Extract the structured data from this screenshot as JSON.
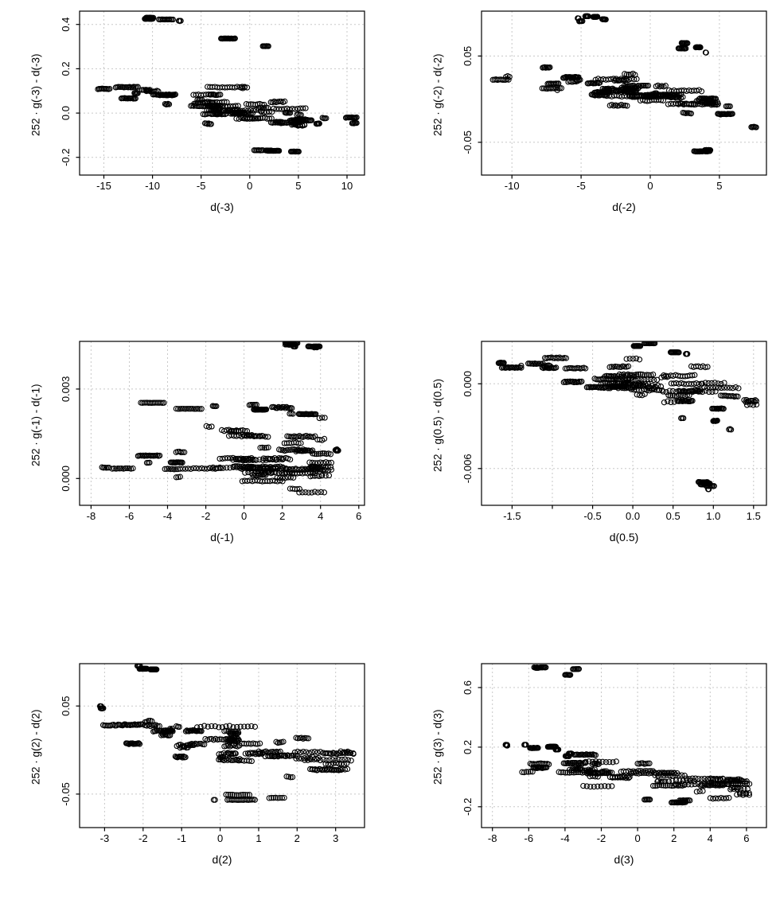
{
  "style": {
    "background": "#ffffff",
    "point_color": "#000000",
    "grid_color": "#c8c8c8",
    "axis_color": "#000000",
    "grid_dash": "2,3",
    "marker": "open-circle"
  },
  "chart_data": [
    {
      "type": "scatter",
      "xlabel": "d(-3)",
      "ylabel": "252 · g(-3) - d(-3)",
      "xlim": [
        -17.5,
        11.8
      ],
      "ylim": [
        -0.28,
        0.46
      ],
      "xticks": [
        -15,
        -10,
        -5,
        0,
        5,
        10
      ],
      "xtick_labels": [
        "-15",
        "-10",
        "-5",
        "0",
        "5",
        "10"
      ],
      "yticks": [
        -0.2,
        0.0,
        0.2,
        0.4
      ],
      "ytick_labels": [
        "-0.2",
        "0.0",
        "0.2",
        "0.4"
      ],
      "grid": "dashed",
      "marker": "open-circle",
      "clusters": [
        {
          "n": 35,
          "x0": -12.5,
          "x1": -6.0,
          "y0": 0.435,
          "y1": 0.42,
          "sy": 0.006
        },
        {
          "n": 25,
          "x0": -3.2,
          "x1": 2.4,
          "y0": 0.345,
          "y1": 0.3,
          "sy": 0.008
        },
        {
          "n": 60,
          "x0": -16.5,
          "x1": -9.0,
          "y0": 0.115,
          "y1": 0.075,
          "sy": 0.022
        },
        {
          "n": 90,
          "x0": -11.0,
          "x1": -3.0,
          "y0": 0.085,
          "y1": 0.03,
          "sy": 0.028
        },
        {
          "n": 270,
          "x0": -6.5,
          "x1": 6.0,
          "y0": 0.05,
          "y1": -0.03,
          "sy": 0.032
        },
        {
          "n": 70,
          "x0": 3.0,
          "x1": 11.0,
          "y0": -0.01,
          "y1": -0.055,
          "sy": 0.018
        },
        {
          "n": 40,
          "x0": -0.5,
          "x1": 5.3,
          "y0": -0.165,
          "y1": -0.175,
          "sy": 0.007
        }
      ]
    },
    {
      "type": "scatter",
      "xlabel": "d(-2)",
      "ylabel": "252 · g(-2) - d(-2)",
      "xlim": [
        -12.2,
        8.4
      ],
      "ylim": [
        -0.088,
        0.102
      ],
      "xticks": [
        -10,
        -5,
        0,
        5
      ],
      "xtick_labels": [
        "-10",
        "-5",
        "0",
        "5"
      ],
      "yticks": [
        -0.05,
        0.05
      ],
      "ytick_labels": [
        "-0.05",
        "0.05"
      ],
      "grid": "dashed",
      "marker": "open-circle",
      "clusters": [
        {
          "n": 30,
          "x0": -5.6,
          "x1": -2.0,
          "y0": 0.097,
          "y1": 0.088,
          "sy": 0.003
        },
        {
          "n": 28,
          "x0": 0.6,
          "x1": 4.2,
          "y0": 0.062,
          "y1": 0.056,
          "sy": 0.003
        },
        {
          "n": 55,
          "x0": -11.5,
          "x1": -5.0,
          "y0": 0.031,
          "y1": 0.019,
          "sy": 0.007
        },
        {
          "n": 95,
          "x0": -7.0,
          "x1": -1.0,
          "y0": 0.024,
          "y1": 0.008,
          "sy": 0.009
        },
        {
          "n": 270,
          "x0": -4.0,
          "x1": 5.0,
          "y0": 0.012,
          "y1": -0.012,
          "sy": 0.011
        },
        {
          "n": 55,
          "x0": 3.0,
          "x1": 7.8,
          "y0": -0.004,
          "y1": -0.021,
          "sy": 0.007
        },
        {
          "n": 35,
          "x0": 1.2,
          "x1": 4.6,
          "y0": -0.058,
          "y1": -0.063,
          "sy": 0.004
        }
      ]
    },
    {
      "type": "scatter",
      "xlabel": "d(-1)",
      "ylabel": "252 · g(-1) - d(-1)",
      "xlim": [
        -8.6,
        6.3
      ],
      "ylim": [
        -0.0009,
        0.0046
      ],
      "xticks": [
        -8,
        -6,
        -4,
        -2,
        0,
        2,
        4,
        6
      ],
      "xtick_labels": [
        "-8",
        "-6",
        "-4",
        "-2",
        "0",
        "2",
        "4",
        "6"
      ],
      "yticks": [
        0.0,
        0.003
      ],
      "ytick_labels": [
        "0.000",
        "0.003"
      ],
      "grid": "dashed",
      "marker": "open-circle",
      "clusters": [
        {
          "n": 45,
          "x0": 0.8,
          "x1": 4.2,
          "y0": 0.00455,
          "y1": 0.0044,
          "sy": 8e-05
        },
        {
          "n": 35,
          "x0": -5.6,
          "x1": -1.2,
          "y0": 0.0025,
          "y1": 0.00242,
          "sy": 6e-05
        },
        {
          "n": 45,
          "x0": 0.2,
          "x1": 4.0,
          "y0": 0.0023,
          "y1": 0.00215,
          "sy": 0.0001
        },
        {
          "n": 140,
          "x0": -2.2,
          "x1": 4.3,
          "y0": 0.00115,
          "y1": 0.00165,
          "sy": 0.0004
        },
        {
          "n": 60,
          "x0": -8.1,
          "x1": -3.2,
          "y0": 0.0005,
          "y1": 0.0004,
          "sy": 0.00014
        },
        {
          "n": 290,
          "x0": -3.6,
          "x1": 4.6,
          "y0": 0.0004,
          "y1": 0.00018,
          "sy": 0.00024
        },
        {
          "n": 10,
          "x0": 4.6,
          "x1": 5.9,
          "y0": 0.001,
          "y1": 0.0008,
          "sy": 0.0003
        }
      ]
    },
    {
      "type": "scatter",
      "xlabel": "d(0.5)",
      "ylabel": "252 · g(0.5) - d(0.5)",
      "xlim": [
        -1.88,
        1.66
      ],
      "ylim": [
        -0.0086,
        0.003
      ],
      "xticks": [
        -1.5,
        -1.0,
        -0.5,
        0.0,
        0.5,
        1.0,
        1.5
      ],
      "xtick_labels": [
        "-1.5",
        "",
        "-0.5",
        "0.0",
        "0.5",
        "1.0",
        "1.5"
      ],
      "yticks": [
        -0.006,
        0.0
      ],
      "ytick_labels": [
        "-0.006",
        "0.000"
      ],
      "grid": "dashed",
      "marker": "open-circle",
      "clusters": [
        {
          "n": 22,
          "x0": -0.38,
          "x1": 0.28,
          "y0": 0.00285,
          "y1": 0.0027,
          "sy": 8e-05
        },
        {
          "n": 14,
          "x0": 0.45,
          "x1": 0.95,
          "y0": 0.00225,
          "y1": 0.0021,
          "sy": 8e-05
        },
        {
          "n": 55,
          "x0": -1.78,
          "x1": -0.95,
          "y0": 0.00155,
          "y1": 0.001,
          "sy": 0.00035
        },
        {
          "n": 115,
          "x0": -1.1,
          "x1": -0.05,
          "y0": 0.001,
          "y1": 0.0002,
          "sy": 0.0005
        },
        {
          "n": 270,
          "x0": -0.4,
          "x1": 1.55,
          "y0": 0.0004,
          "y1": -0.0012,
          "sy": 0.00065
        },
        {
          "n": 40,
          "x0": 0.55,
          "x1": 1.3,
          "y0": -0.0018,
          "y1": -0.0025,
          "sy": 0.00035
        },
        {
          "n": 35,
          "x0": 0.38,
          "x1": 1.02,
          "y0": -0.0069,
          "y1": -0.0071,
          "sy": 0.00018
        }
      ]
    },
    {
      "type": "scatter",
      "xlabel": "d(2)",
      "ylabel": "252 · g(2) - d(2)",
      "xlim": [
        -3.65,
        3.75
      ],
      "ylim": [
        -0.088,
        0.098
      ],
      "xticks": [
        -3,
        -2,
        -1,
        0,
        1,
        2,
        3
      ],
      "xtick_labels": [
        "-3",
        "-2",
        "-1",
        "0",
        "1",
        "2",
        "3"
      ],
      "yticks": [
        -0.05,
        0.05
      ],
      "ytick_labels": [
        "-0.05",
        "0.05"
      ],
      "grid": "dashed",
      "marker": "open-circle",
      "clusters": [
        {
          "n": 30,
          "x0": -2.3,
          "x1": -1.15,
          "y0": 0.094,
          "y1": 0.089,
          "sy": 0.0025
        },
        {
          "n": 10,
          "x0": -3.4,
          "x1": -2.75,
          "y0": 0.049,
          "y1": 0.045,
          "sy": 0.002
        },
        {
          "n": 70,
          "x0": -3.1,
          "x1": -1.2,
          "y0": 0.034,
          "y1": 0.019,
          "sy": 0.009
        },
        {
          "n": 120,
          "x0": -2.0,
          "x1": 0.5,
          "y0": 0.021,
          "y1": 0.004,
          "sy": 0.011
        },
        {
          "n": 250,
          "x0": -0.8,
          "x1": 3.5,
          "y0": 0.005,
          "y1": -0.018,
          "sy": 0.011
        },
        {
          "n": 40,
          "x0": -0.6,
          "x1": 2.15,
          "y0": -0.051,
          "y1": -0.064,
          "sy": 0.005
        }
      ]
    },
    {
      "type": "scatter",
      "xlabel": "d(3)",
      "ylabel": "252 · g(3) - d(3)",
      "xlim": [
        -8.6,
        7.1
      ],
      "ylim": [
        -0.34,
        0.76
      ],
      "xticks": [
        -8,
        -6,
        -4,
        -2,
        0,
        2,
        4,
        6
      ],
      "xtick_labels": [
        "-8",
        "-6",
        "-4",
        "-2",
        "0",
        "2",
        "4",
        "6"
      ],
      "yticks": [
        -0.2,
        0.2,
        0.6
      ],
      "ytick_labels": [
        "-0.2",
        "0.2",
        "0.6"
      ],
      "grid": "dashed",
      "marker": "open-circle",
      "clusters": [
        {
          "n": 32,
          "x0": -6.1,
          "x1": -3.2,
          "y0": 0.73,
          "y1": 0.705,
          "sy": 0.015
        },
        {
          "n": 12,
          "x0": -7.6,
          "x1": -6.7,
          "y0": 0.215,
          "y1": 0.2,
          "sy": 0.01
        },
        {
          "n": 45,
          "x0": -6.4,
          "x1": -3.6,
          "y0": 0.205,
          "y1": 0.17,
          "sy": 0.018
        },
        {
          "n": 120,
          "x0": -6.5,
          "x1": -1.0,
          "y0": 0.1,
          "y1": 0.02,
          "sy": 0.045
        },
        {
          "n": 270,
          "x0": -3.0,
          "x1": 6.2,
          "y0": 0.03,
          "y1": -0.07,
          "sy": 0.042
        },
        {
          "n": 30,
          "x0": -0.5,
          "x1": 3.2,
          "y0": -0.13,
          "y1": -0.17,
          "sy": 0.018
        }
      ]
    }
  ]
}
